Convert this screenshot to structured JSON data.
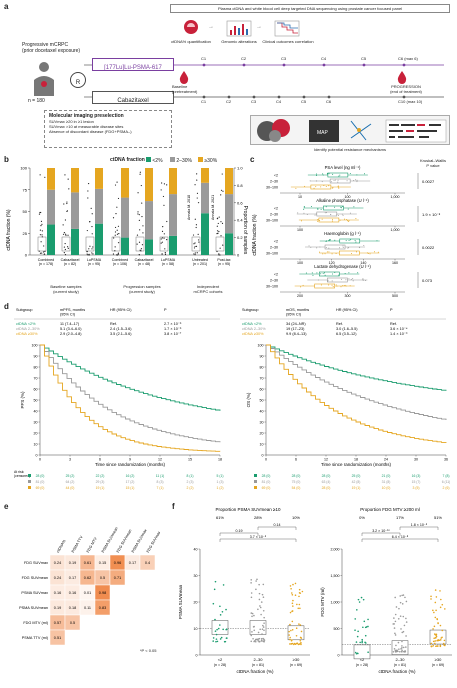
{
  "panel_labels": {
    "a": "a",
    "b": "b",
    "c": "c",
    "d": "d",
    "e": "e",
    "f": "f"
  },
  "panel_a": {
    "header": "Plasma ctDNA and white blood cell deep targeted DNA sequencing using prostate cancer focused panel",
    "icons": [
      "ctDNA% quantification",
      "Genomic alterations",
      "Clinical outcomes correlation"
    ],
    "cohort": "Progressive mCRPC\n(prior docetaxel exposure)",
    "n": "n = 180",
    "randomization": "R",
    "arm1": "[177Lu]Lu-PSMA-617",
    "arm2": "Cabazitaxel",
    "cycles_top": [
      "C1",
      "C2",
      "C3",
      "C4",
      "C5",
      "C6 (max 6)"
    ],
    "cycles_bottom": [
      "C1",
      "C2",
      "C3",
      "C4",
      "C5",
      "C6",
      "C10 (max 10)"
    ],
    "baseline": "Baseline\n(pretreatment)",
    "progression": "PROGRESSION\n(end of treatment)",
    "imaging_title": "Molecular imaging preselection",
    "imaging_items": [
      "SUVmax ≥20 in ≥1 lesion",
      "SUVmax >10 at measurable disease sites",
      "Absence of discordant disease (FDG+PSMA–)"
    ],
    "resistance": "Identify potential resistance mechanisms"
  },
  "panel_b": {
    "legend_title": "ctDNA fraction",
    "legend": [
      "<2%",
      "2–30%",
      "≥30%"
    ],
    "ylabel": "ctDNA fraction (%)",
    "ylabel_right": "Proportion of samples",
    "groups": [
      {
        "label": "Combined",
        "n": "(n = 178)"
      },
      {
        "label": "Cabazitaxel",
        "n": "(n = 82)"
      },
      {
        "label": "LuPSMA",
        "n": "(n = 95)"
      },
      {
        "label": "Combined",
        "n": "(n = 106)"
      },
      {
        "label": "Cabazitaxel",
        "n": "(n = 48)"
      },
      {
        "label": "LuPSMA",
        "n": "(n = 58)"
      },
      {
        "label": "Untreated",
        "n": "(n = 201)"
      },
      {
        "label": "Post-tax",
        "n": "(n = 95)"
      }
    ],
    "sections": [
      "Baseline samples\n(current study)",
      "Progression samples\n(current study)",
      "Independent\nmCRPC cohorts"
    ],
    "rotated": [
      "Annala M. 2018",
      "Annala M. 2021"
    ],
    "yticks": [
      "0",
      "25",
      "50",
      "75",
      "100"
    ],
    "yticks_right": [
      "0",
      "0.2",
      "0.4",
      "0.6",
      "0.8",
      "1.0"
    ]
  },
  "panel_c": {
    "ylabel": "ctDNA fraction (%)",
    "header": "Kruskal–Wallis\nP value",
    "subpanels": [
      {
        "title": "PSA level (ng ml⁻¹)",
        "ticks": [
          "10",
          "100",
          "1,000"
        ],
        "p": "0.0027"
      },
      {
        "title": "Alkaline phosphatase (U l⁻¹)",
        "ticks": [
          "100",
          "1,000"
        ],
        "p": "1.9 × 10⁻⁸"
      },
      {
        "title": "Haemoglobin (g l⁻¹)",
        "ticks": [
          "100",
          "120",
          "140",
          "160"
        ],
        "p": "0.0022"
      },
      {
        "title": "Lactate dehydrogenase (U l⁻¹)",
        "ticks": [
          "200",
          "300",
          "500"
        ],
        "p": "0.073"
      }
    ],
    "groups": [
      "<2",
      "2–30",
      "30–100"
    ]
  },
  "panel_d": {
    "pfs": {
      "table_header": [
        "Subgroup",
        "mPFS, months\n(95% CI)",
        "HR (95% CI)",
        "P"
      ],
      "rows": [
        [
          "ctDNA <2%",
          "11 (7.4–17)",
          "Ref.",
          "2.7 × 10⁻⁶"
        ],
        [
          "ctDNA 2–30%",
          "5.1 (3.4–6.0)",
          "2.4 (1.5–3.6)",
          "1.7 × 10⁻⁶"
        ],
        [
          "ctDNA ≥30%",
          "2.9 (2.0–4.8)",
          "3.5 (2.1–5.6)",
          "3.8 × 10⁻⁷"
        ]
      ],
      "ylabel": "PFS (%)",
      "xlabel": "Time since randomization (months)",
      "xticks": [
        "0",
        "3",
        "6",
        "9",
        "12",
        "15",
        "18"
      ],
      "yticks": [
        "0",
        "10",
        "20",
        "30",
        "40",
        "50",
        "60",
        "70",
        "80",
        "90",
        "100"
      ],
      "at_risk_label": "At risk:\n(censored)",
      "at_risk": [
        [
          "28 (0)",
          "25 (2)",
          "22 (2)",
          "16 (2)",
          "11 (1)",
          "8 (1)",
          "5 (1)"
        ],
        [
          "81 (0)",
          "64 (2)",
          "29 (3)",
          "17 (2)",
          "8 (3)",
          "2 (3)",
          "1 (3)"
        ],
        [
          "69 (0)",
          "44 (0)",
          "19 (1)",
          "15 (1)",
          "7 (1)",
          "2 (2)",
          "1 (2)"
        ]
      ]
    },
    "os": {
      "table_header": [
        "Subgroup",
        "mOS, months\n(95% CI)",
        "HR (95% CI)",
        "P"
      ],
      "rows": [
        [
          "ctDNA <2%",
          "34 (24–NR)",
          "Ref.",
          "Ref."
        ],
        [
          "ctDNA 2–30%",
          "19 (17–23)",
          "3.0 (1.6–5.5)",
          "3.6 × 10⁻⁴"
        ],
        [
          "ctDNA ≥30%",
          "9.9 (8.4–13)",
          "6.5 (3.5–12)",
          "1.4 × 10⁻⁹"
        ]
      ],
      "ylabel": "OS (%)",
      "xlabel": "Time since randomization (months)",
      "xticks": [
        "0",
        "6",
        "12",
        "18",
        "24",
        "30",
        "36"
      ],
      "yticks": [
        "0",
        "10",
        "20",
        "30",
        "40",
        "50",
        "60",
        "70",
        "80",
        "90",
        "100"
      ],
      "at_risk": [
        [
          "28 (0)",
          "28 (0)",
          "28 (0)",
          "25 (0)",
          "21 (0)",
          "16 (3)",
          "7 (8)"
        ],
        [
          "81 (0)",
          "75 (0)",
          "63 (4)",
          "42 (8)",
          "31 (8)",
          "15 (7)",
          "6 (11)"
        ],
        [
          "69 (0)",
          "54 (0)",
          "28 (0)",
          "19 (1)",
          "10 (0)",
          "3 (5)",
          "2 (6)"
        ]
      ]
    }
  },
  "panel_e": {
    "cols": [
      "ctDNA%",
      "PSMA TTV",
      "FDG MTV",
      "PSMA SUVmean",
      "FDG SUVmean",
      "PSMA SUVmax",
      "FDG SUVmax"
    ],
    "rows": [
      "FDG SUVmax",
      "FDG SUVmean",
      "PSMA SUVmax",
      "PSMA SUVmean",
      "FDG MTV (ml)",
      "PSMA TTV (ml)"
    ],
    "values": [
      [
        "0.24",
        "0.19",
        "0.61",
        "0.15",
        "0.96",
        "0.17",
        "0.4"
      ],
      [
        "0.24",
        "0.17",
        "0.62",
        "0.5",
        "0.71"
      ],
      [
        "0.16",
        "0.16",
        "0.01",
        "0.98"
      ],
      [
        "0.19",
        "0.18",
        "0.11",
        "0.83"
      ],
      [
        "0.57",
        "0.5"
      ],
      [
        "0.51"
      ]
    ],
    "footnote": "*P < 0.05"
  },
  "panel_f": {
    "left": {
      "title": "Proportion PSMA SUVmean ≥10",
      "pct": [
        "61%",
        "28%",
        "10%"
      ],
      "pvals": [
        "0.14",
        "0.19",
        "3.7 × 10⁻⁵"
      ],
      "ylabel": "PSMA SUVmean",
      "xlabel": "ctDNA fraction (%)",
      "groups": [
        {
          "label": "<2",
          "n": "(n = 28)"
        },
        {
          "label": "2–30",
          "n": "(n = 81)"
        },
        {
          "label": "≥30",
          "n": "(n = 69)"
        }
      ],
      "yticks": [
        "0",
        "10",
        "20",
        "30",
        "40"
      ]
    },
    "right": {
      "title": "Proportion FDG MTV ≥200 ml",
      "pct": [
        "0%",
        "17%",
        "51%"
      ],
      "pvals": [
        "1.8 × 10⁻⁵",
        "3.2 × 10⁻¹⁰",
        "6.4 × 10⁻⁸"
      ],
      "ylabel": "FDG MTV (ml)",
      "xlabel": "ctDNA fraction (%)",
      "groups": [
        {
          "label": "<2",
          "n": "(n = 28)"
        },
        {
          "label": "2–30",
          "n": "(n = 81)"
        },
        {
          "label": "≥30",
          "n": "(n = 69)"
        }
      ],
      "yticks": [
        "0",
        "500",
        "1,000",
        "1,500",
        "2,000"
      ]
    }
  },
  "colors": {
    "low": "#1a9c6e",
    "mid": "#9a9a9a",
    "high": "#e5a620",
    "accent": "#7a3fa0",
    "heat": "#f08a4b"
  }
}
